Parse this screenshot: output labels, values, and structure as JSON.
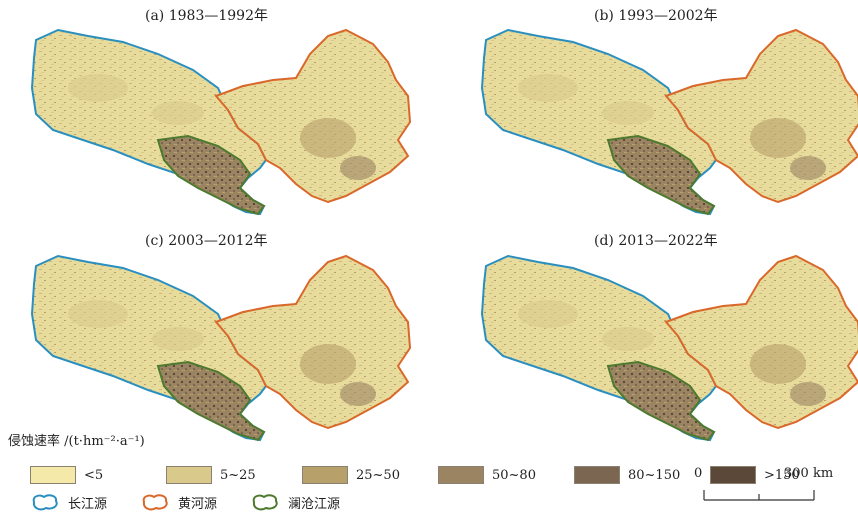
{
  "panels": [
    {
      "title": "(a) 1983—1992年"
    },
    {
      "title": "(b) 1993—2002年"
    },
    {
      "title": "(c) 2003—2012年"
    },
    {
      "title": "(d) 2013—2022年"
    }
  ],
  "legend": {
    "title": "侵蚀速率 /(t·hm⁻²·a⁻¹)",
    "classes": [
      {
        "label": "<5",
        "color": "#f4e9a8"
      },
      {
        "label": "5~25",
        "color": "#d9c98b"
      },
      {
        "label": "25~50",
        "color": "#b8a06b"
      },
      {
        "label": "50~80",
        "color": "#9a8462"
      },
      {
        "label": "80~150",
        "color": "#7a6651"
      },
      {
        "label": ">150",
        "color": "#5b4838"
      }
    ],
    "regions": [
      {
        "label": "长江源",
        "color": "#2a8fbf"
      },
      {
        "label": "黄河源",
        "color": "#d9682a"
      },
      {
        "label": "澜沧江源",
        "color": "#4d7a2e"
      }
    ]
  },
  "scale_bar": {
    "start_label": "0",
    "end_label": "300 km"
  }
}
